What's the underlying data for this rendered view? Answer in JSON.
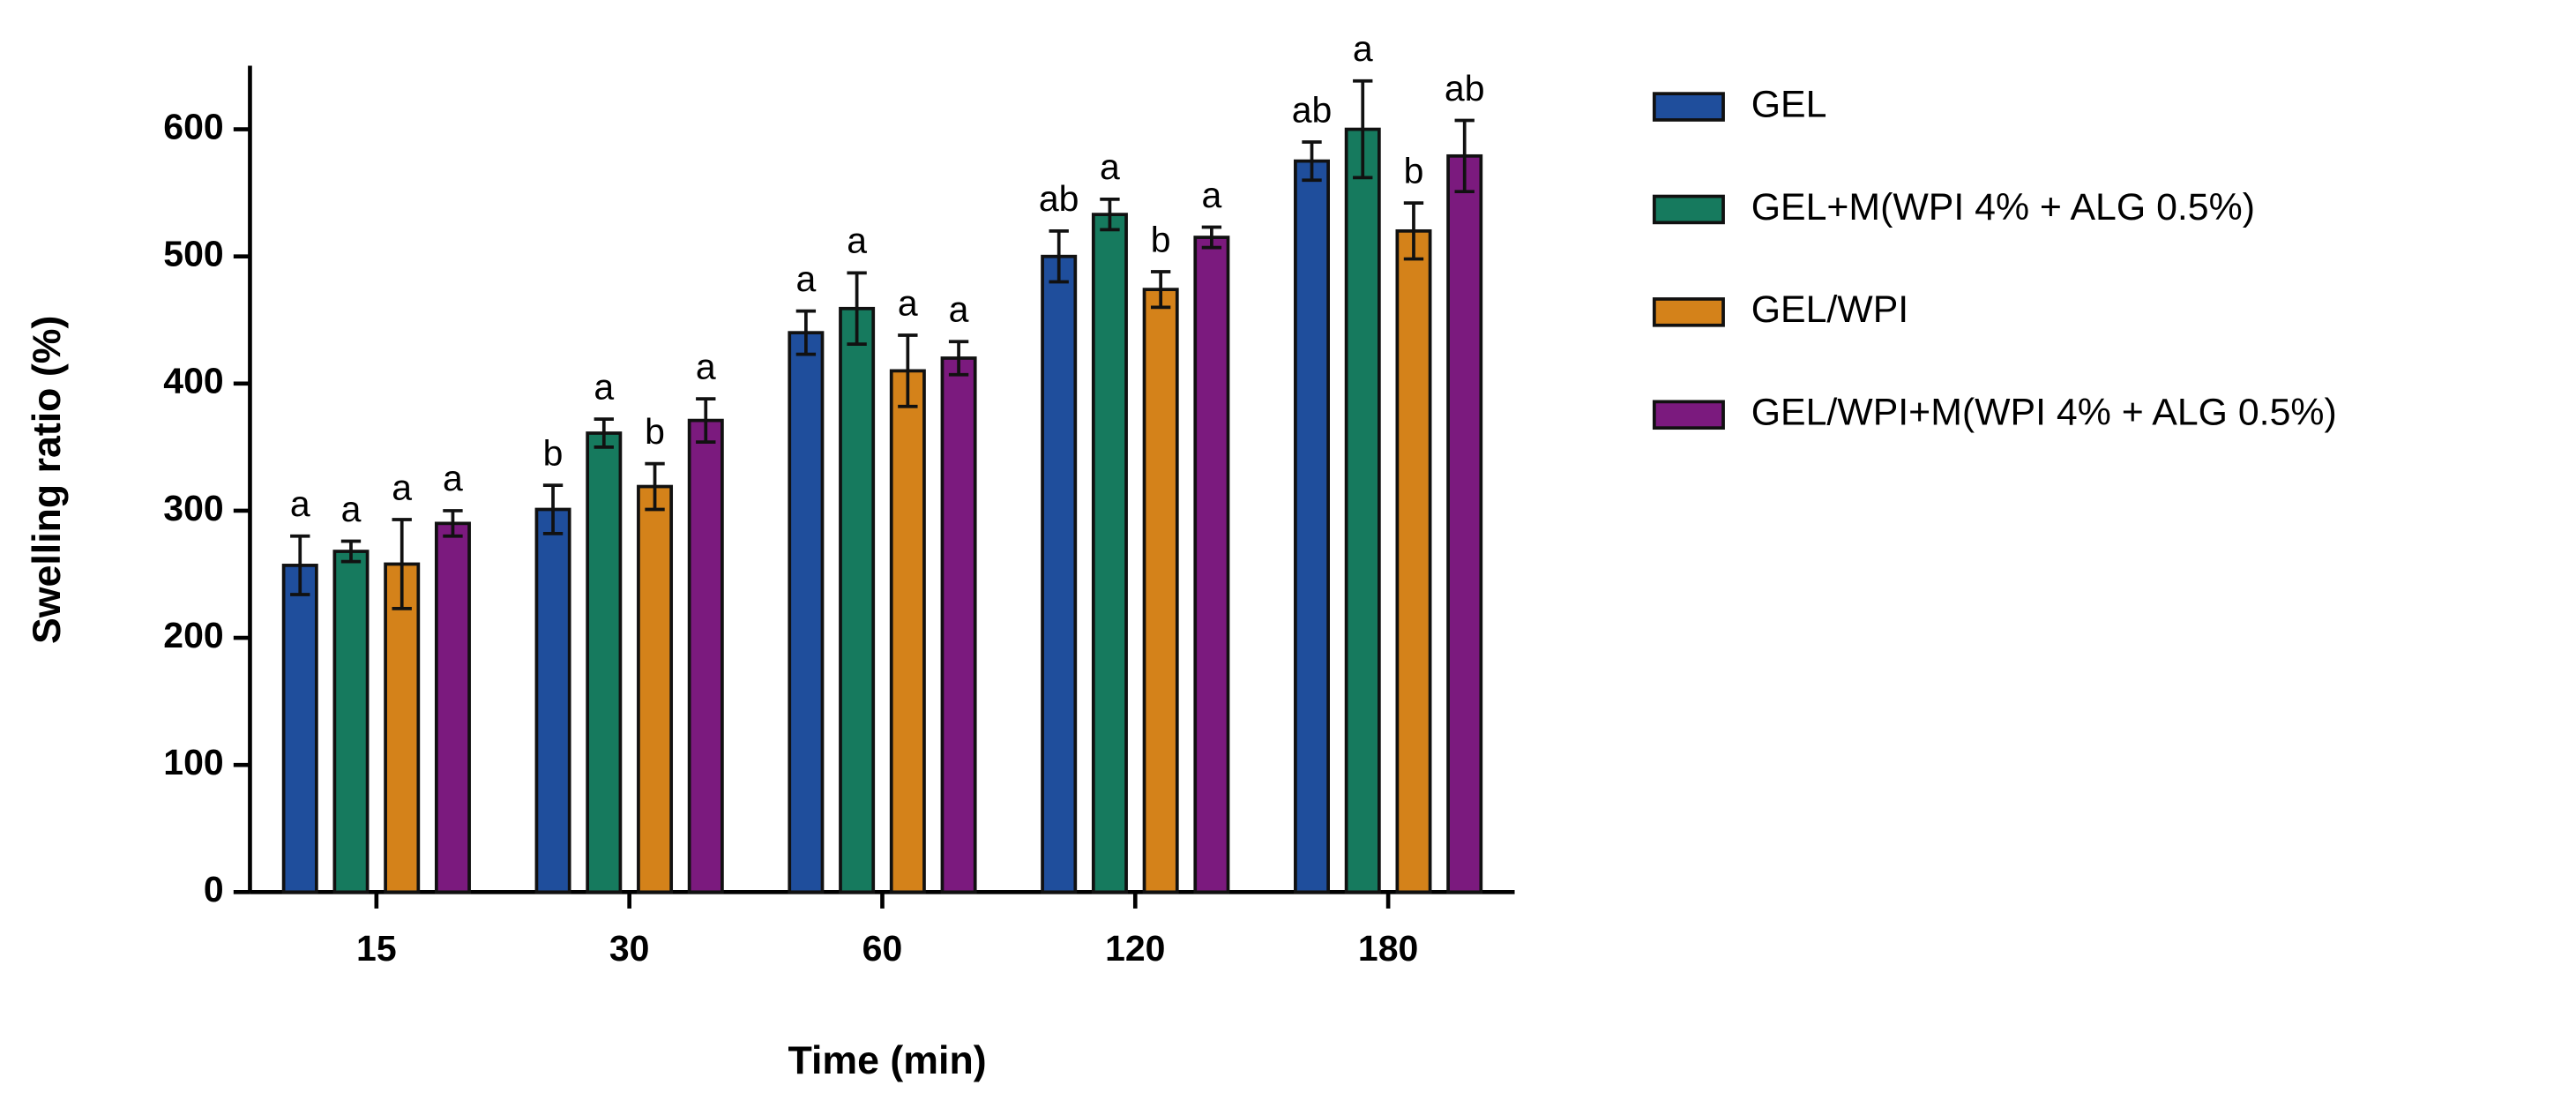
{
  "chart_data": {
    "type": "bar",
    "xlabel": "Time (min)",
    "ylabel": "Swelling ratio (%)",
    "categories": [
      "15",
      "30",
      "60",
      "120",
      "180"
    ],
    "series": [
      {
        "name": "GEL",
        "color": "#1f4e9c",
        "values": [
          257,
          301,
          440,
          500,
          575
        ],
        "errors": [
          23,
          19,
          17,
          20,
          15
        ],
        "letters": [
          "a",
          "b",
          "a",
          "ab",
          "ab"
        ]
      },
      {
        "name": "GEL+M(WPI 4% + ALG 0.5%)",
        "color": "#167a5e",
        "values": [
          268,
          361,
          459,
          533,
          600
        ],
        "errors": [
          8,
          11,
          28,
          12,
          38
        ],
        "letters": [
          "a",
          "a",
          "a",
          "a",
          "a"
        ]
      },
      {
        "name": "GEL/WPI",
        "color": "#d4821a",
        "values": [
          258,
          319,
          410,
          474,
          520
        ],
        "errors": [
          35,
          18,
          28,
          14,
          22
        ],
        "letters": [
          "a",
          "b",
          "a",
          "b",
          "b"
        ]
      },
      {
        "name": "GEL/WPI+M(WPI 4% + ALG 0.5%)",
        "color": "#7b1a7e",
        "values": [
          290,
          371,
          420,
          515,
          579
        ],
        "errors": [
          10,
          17,
          13,
          8,
          28
        ],
        "letters": [
          "a",
          "a",
          "a",
          "a",
          "ab"
        ]
      }
    ],
    "ylim": [
      0,
      650
    ],
    "yticks": [
      0,
      100,
      200,
      300,
      400,
      500,
      600
    ]
  }
}
